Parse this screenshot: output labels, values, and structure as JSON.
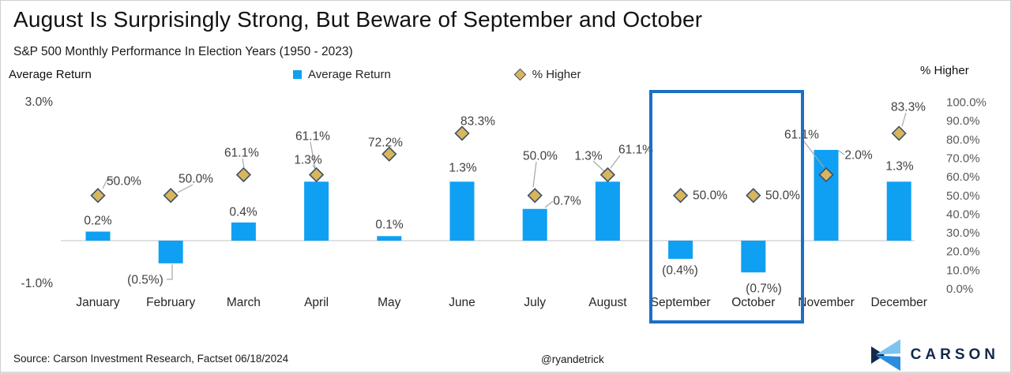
{
  "header": {
    "title": "August Is Surprisingly Strong, But Beware of September and October",
    "subtitle": "S&P 500 Monthly Performance In Election Years (1950 - 2023)"
  },
  "legend": {
    "avg_return_label": "Average Return",
    "pct_higher_label": "% Higher"
  },
  "axes": {
    "left_title": "Average Return",
    "right_title": "% Higher"
  },
  "footer": {
    "source": "Source: Carson Investment Research, Factset 06/18/2024",
    "handle": "@ryandetrick",
    "brand": "CARSON"
  },
  "colors": {
    "bar_blue": "#0FA0F3",
    "diamond_fill": "#D9B65C",
    "diamond_stroke": "#3F5266",
    "highlight_stroke": "#1B6FC4",
    "leader_gray": "#A6A6A6",
    "zero_line": "#D6D6D6",
    "label_dark": "#3F3F3F",
    "tick_gray": "#595959",
    "month_dark": "#262626",
    "logo_navy": "#13294B",
    "logo_light_blue": "#7CC4F0",
    "logo_mid_blue": "#2C8CE0"
  },
  "chart_data": {
    "type": "bar",
    "title": "August Is Surprisingly Strong, But Beware of September and October",
    "subtitle": "S&P 500 Monthly Performance In Election Years (1950 - 2023)",
    "categories": [
      "January",
      "February",
      "March",
      "April",
      "May",
      "June",
      "July",
      "August",
      "September",
      "October",
      "November",
      "December"
    ],
    "series": [
      {
        "name": "Average Return",
        "type": "bar",
        "axis": "left",
        "values": [
          0.2,
          -0.5,
          0.4,
          1.3,
          0.1,
          1.3,
          0.7,
          1.3,
          -0.4,
          -0.7,
          2.0,
          1.3
        ],
        "labels": [
          "0.2%",
          "(0.5%)",
          "0.4%",
          "1.3%",
          "0.1%",
          "1.3%",
          "0.7%",
          "1.3%",
          "(0.4%)",
          "(0.7%)",
          "2.0%",
          "1.3%"
        ]
      },
      {
        "name": "% Higher",
        "type": "scatter-diamond",
        "axis": "right",
        "values": [
          50.0,
          50.0,
          61.1,
          61.1,
          72.2,
          83.3,
          50.0,
          61.1,
          50.0,
          50.0,
          61.1,
          83.3
        ],
        "labels": [
          "50.0%",
          "50.0%",
          "61.1%",
          "61.1%",
          "72.2%",
          "83.3%",
          "50.0%",
          "61.1%",
          "50.0%",
          "50.0%",
          "61.1%",
          "83.3%"
        ]
      }
    ],
    "left_axis": {
      "title": "Average Return",
      "min": -1.0,
      "max": 3.0,
      "tick_labels": [
        "3.0%",
        "-1.0%"
      ]
    },
    "right_axis": {
      "title": "% Higher",
      "min": 0,
      "max": 100,
      "tick_labels": [
        "100.0%",
        "90.0%",
        "80.0%",
        "70.0%",
        "60.0%",
        "50.0%",
        "40.0%",
        "30.0%",
        "20.0%",
        "10.0%",
        "0.0%"
      ]
    },
    "grid": "zero-line-only",
    "legend_position": "top-center",
    "highlight_box": {
      "months": [
        "September",
        "October"
      ]
    }
  }
}
